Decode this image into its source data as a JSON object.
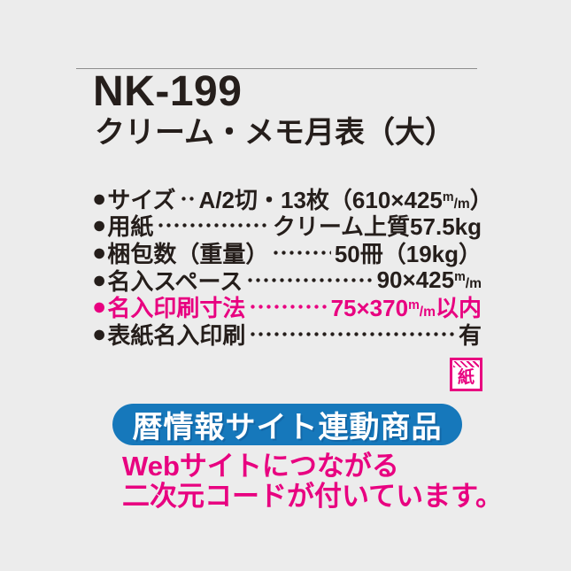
{
  "header": {
    "product_code": "NK-199",
    "product_name": "クリーム・メモ月表（大）"
  },
  "specs": {
    "bullet": "●",
    "rows": [
      {
        "label": "サイズ",
        "value": "A/2切・13枚（610×425",
        "unit_sup": "m",
        "unit_rest": "/m",
        "tail": "）",
        "highlight": false
      },
      {
        "label": "用紙",
        "value": "クリーム上質57.5kg",
        "unit_sup": "",
        "unit_rest": "",
        "tail": "",
        "highlight": false
      },
      {
        "label": "梱包数（重量）",
        "value": "50冊（19kg）",
        "unit_sup": "",
        "unit_rest": "",
        "tail": "",
        "highlight": false
      },
      {
        "label": "名入スペース",
        "value": "90×425",
        "unit_sup": "m",
        "unit_rest": "/m",
        "tail": "",
        "highlight": false
      },
      {
        "label": "名入印刷寸法",
        "value": "75×370",
        "unit_sup": "m",
        "unit_rest": "/m",
        "tail": "以内",
        "highlight": true
      },
      {
        "label": "表紙名入印刷",
        "value": "有",
        "unit_sup": "",
        "unit_rest": "",
        "tail": "",
        "highlight": false
      }
    ]
  },
  "paper_icon": {
    "label": "紙"
  },
  "banner": {
    "label": "暦情報サイト連動商品"
  },
  "note": {
    "line1": "Webサイトにつながる",
    "line2": "二次元コードが付いています。"
  },
  "colors": {
    "background": "#ececec",
    "text": "#251e1b",
    "pink": "#e80080",
    "blue": "#1678bb"
  }
}
